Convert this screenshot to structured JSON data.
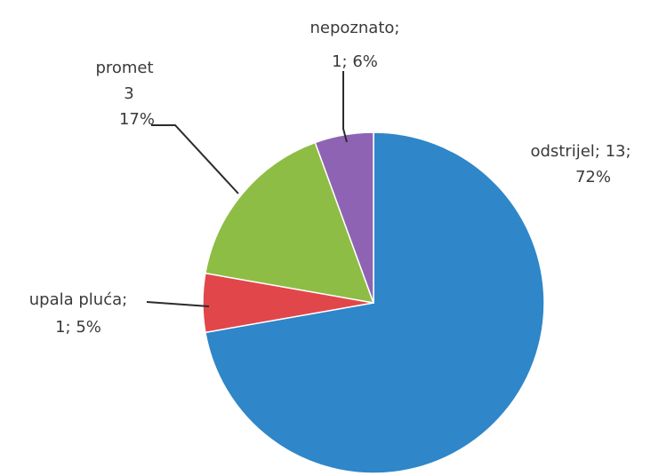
{
  "chart_data": {
    "type": "pie",
    "slices": [
      {
        "category": "odstrijel",
        "value": 13,
        "percent": "72%",
        "color": "#2f86c9",
        "label_lines": [
          "odstrijel; 13;",
          "72%"
        ]
      },
      {
        "category": "upala pluća",
        "value": 1,
        "percent": "5%",
        "color": "#e1474a",
        "label_lines": [
          "upala pluća;",
          "1; 5%"
        ]
      },
      {
        "category": "promet",
        "value": 3,
        "percent": "17%",
        "color": "#8dbd45",
        "label_lines": [
          "promet",
          "3",
          "17%"
        ]
      },
      {
        "category": "nepoznato",
        "value": 1,
        "percent": "6%",
        "color": "#8f63b4",
        "label_lines": [
          "nepoznato;",
          "1; 6%"
        ]
      }
    ]
  }
}
